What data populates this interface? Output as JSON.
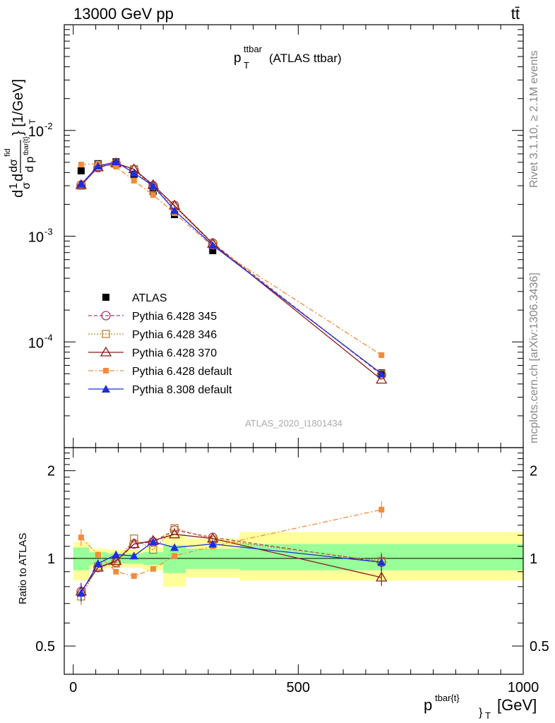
{
  "header": {
    "left": "13000 GeV pp",
    "right": "tt̄"
  },
  "main_title": {
    "base": "p",
    "sup": "ttbar",
    "sub": "T",
    "suffix": "(ATLAS ttbar)"
  },
  "watermark": "ATLAS_2020_I1801434",
  "side_labels": {
    "rivet": "Rivet 3.1.10, ≥ 2.1M events",
    "mcplots": "mcplots.cern.ch [arXiv:1306.3436]"
  },
  "y_label_main": {
    "num_d": "d",
    "frac_1": "1",
    "sigma": "σ",
    "d2": "d",
    "dsigma": "dσ",
    "dsigma_sup": "fid",
    "dp": "d p",
    "dp_sub": "tbar{t}",
    "sub_T": "T",
    "unit": "} [1/GeV]"
  },
  "y_label_ratio": "Ratio to ATLAS",
  "x_label": {
    "base": "p",
    "sup": "tbar{t}",
    "sub": "}",
    "subT": "T",
    "unit": "[GeV]"
  },
  "colors": {
    "atlas": "#000000",
    "p345": "#b03a5e",
    "p346": "#b8862b",
    "p370": "#8b1a1a",
    "pdefault": "#f58a3a",
    "p8": "#1f2de0",
    "band_inner": "#99ff99",
    "band_outer": "#ffff99"
  },
  "chart_data": [
    {
      "type": "line",
      "panel": "main",
      "xlabel": "p_T^{tbar{t}} [GeV]",
      "ylabel": "d1/σ dσ^fid / d p_T^{tbar{t}} [1/GeV]",
      "xlim": [
        -20,
        1000
      ],
      "ylim": [
        1e-05,
        0.1
      ],
      "yscale": "log",
      "x_ticks": [
        "0",
        "500",
        "1000"
      ],
      "y_ticks": [
        "10^-2",
        "10^-3",
        "10^-4"
      ],
      "x": [
        17.5,
        55,
        95,
        135,
        177.5,
        225,
        310,
        685
      ],
      "legend_position": "middle-left",
      "series": [
        {
          "name": "ATLAS",
          "key": "atlas",
          "marker": "square-filled",
          "line": "none",
          "values": [
            0.00415,
            0.00485,
            0.00505,
            0.00385,
            0.00265,
            0.0016,
            0.00073,
            5.1e-05
          ]
        },
        {
          "name": "Pythia 6.428 345",
          "key": "p345",
          "marker": "circle-open",
          "line": "dashed",
          "values": [
            0.00305,
            0.00445,
            0.0049,
            0.00425,
            0.003,
            0.00195,
            0.00086,
            4.9e-05
          ]
        },
        {
          "name": "Pythia 6.428 346",
          "key": "p346",
          "marker": "square-open",
          "line": "dotted",
          "values": [
            0.003,
            0.0045,
            0.00485,
            0.0043,
            0.00285,
            0.0019,
            0.00084,
            5e-05
          ]
        },
        {
          "name": "Pythia 6.428 370",
          "key": "p370",
          "marker": "triangle-open",
          "line": "solid",
          "values": [
            0.00305,
            0.00448,
            0.0049,
            0.0043,
            0.00305,
            0.00195,
            0.00085,
            4.4e-05
          ]
        },
        {
          "name": "Pythia 6.428 default",
          "key": "pdefault",
          "marker": "square-small",
          "line": "dashdot",
          "values": [
            0.00475,
            0.00485,
            0.00455,
            0.00335,
            0.00245,
            0.00165,
            0.0008,
            7.5e-05
          ]
        },
        {
          "name": "Pythia 8.308 default",
          "key": "p8",
          "marker": "triangle-filled",
          "line": "solid",
          "values": [
            0.0031,
            0.0046,
            0.00505,
            0.00395,
            0.003,
            0.00175,
            0.00082,
            5e-05
          ]
        }
      ]
    },
    {
      "type": "line",
      "panel": "ratio",
      "ylabel": "Ratio to ATLAS",
      "xlim": [
        -20,
        1000
      ],
      "ylim": [
        0.4,
        2.4
      ],
      "yscale": "log",
      "y_ticks": [
        "2",
        "1",
        "0.5"
      ],
      "x": [
        17.5,
        55,
        95,
        135,
        177.5,
        225,
        310,
        685
      ],
      "series": [
        {
          "name": "Pythia 6.428 345",
          "key": "p345",
          "values": [
            0.77,
            0.93,
            0.97,
            1.12,
            1.14,
            1.25,
            1.18,
            0.97
          ]
        },
        {
          "name": "Pythia 6.428 346",
          "key": "p346",
          "values": [
            0.74,
            0.94,
            0.96,
            1.17,
            1.07,
            1.27,
            1.16,
            0.98
          ]
        },
        {
          "name": "Pythia 6.428 370",
          "key": "p370",
          "values": [
            0.77,
            0.93,
            0.98,
            1.12,
            1.15,
            1.21,
            1.17,
            0.86
          ]
        },
        {
          "name": "Pythia 6.428 default",
          "key": "pdefault",
          "values": [
            1.18,
            1.03,
            0.9,
            0.87,
            0.92,
            1.02,
            1.1,
            1.47
          ]
        },
        {
          "name": "Pythia 8.308 default",
          "key": "p8",
          "values": [
            0.76,
            0.96,
            1.03,
            1.02,
            1.14,
            1.09,
            1.12,
            0.97
          ]
        }
      ],
      "uncertainty_bands": {
        "bin_edges": [
          0,
          35,
          75,
          115,
          155,
          200,
          250,
          370,
          1000
        ],
        "inner": [
          [
            0.91,
            1.09
          ],
          [
            0.95,
            1.05
          ],
          [
            0.96,
            1.04
          ],
          [
            0.96,
            1.04
          ],
          [
            0.95,
            1.05
          ],
          [
            0.89,
            1.11
          ],
          [
            0.92,
            1.08
          ],
          [
            0.91,
            1.12
          ]
        ],
        "outer": [
          [
            0.84,
            1.14
          ],
          [
            0.92,
            1.08
          ],
          [
            0.93,
            1.07
          ],
          [
            0.93,
            1.07
          ],
          [
            0.91,
            1.09
          ],
          [
            0.8,
            1.21
          ],
          [
            0.86,
            1.17
          ],
          [
            0.84,
            1.23
          ]
        ]
      }
    }
  ]
}
